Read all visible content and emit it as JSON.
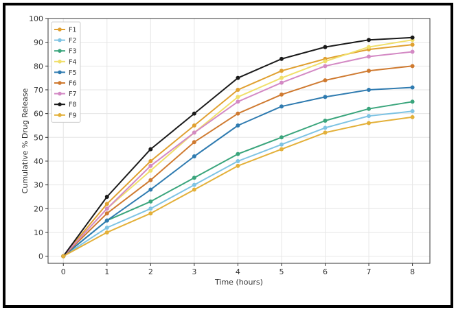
{
  "chart_data": {
    "type": "line",
    "title": "",
    "xlabel": "Time (hours)",
    "ylabel": "Cumulative % Drug Release",
    "x": [
      0,
      1,
      2,
      3,
      4,
      5,
      6,
      7,
      8
    ],
    "xlim": [
      -0.35,
      8.4
    ],
    "ylim": [
      -3,
      100
    ],
    "xticks": [
      "0",
      "1",
      "2",
      "3",
      "4",
      "5",
      "6",
      "7",
      "8"
    ],
    "yticks": [
      "0",
      "10",
      "20",
      "30",
      "40",
      "50",
      "60",
      "70",
      "80",
      "90",
      "100"
    ],
    "grid": true,
    "legend_position": "top-left",
    "series": [
      {
        "name": "F1",
        "color": "#e0a030",
        "values": [
          0,
          22,
          40,
          55,
          70,
          78,
          83,
          87,
          89
        ]
      },
      {
        "name": "F2",
        "color": "#7ec3e3",
        "values": [
          0,
          12,
          20,
          30,
          40,
          47,
          54,
          59,
          61
        ]
      },
      {
        "name": "F3",
        "color": "#3aa57c",
        "values": [
          0,
          15,
          23,
          33,
          43,
          50,
          57,
          62,
          65
        ]
      },
      {
        "name": "F4",
        "color": "#f0df6a",
        "values": [
          0,
          20,
          36,
          52,
          67,
          75,
          82,
          88,
          91
        ]
      },
      {
        "name": "F5",
        "color": "#2f7bb0",
        "values": [
          0,
          15,
          28,
          42,
          55,
          63,
          67,
          70,
          71
        ]
      },
      {
        "name": "F6",
        "color": "#cf7a30",
        "values": [
          0,
          18,
          32,
          48,
          60,
          68,
          74,
          78,
          80
        ]
      },
      {
        "name": "F7",
        "color": "#d389c4",
        "values": [
          0,
          20,
          38,
          52,
          65,
          73,
          80,
          84,
          86
        ]
      },
      {
        "name": "F8",
        "color": "#1a1a1a",
        "values": [
          0,
          25,
          45,
          60,
          75,
          83,
          88,
          91,
          92
        ]
      },
      {
        "name": "F9",
        "color": "#e3b039",
        "values": [
          0,
          10,
          18,
          28,
          38,
          45,
          52,
          56,
          58.5
        ]
      }
    ]
  }
}
